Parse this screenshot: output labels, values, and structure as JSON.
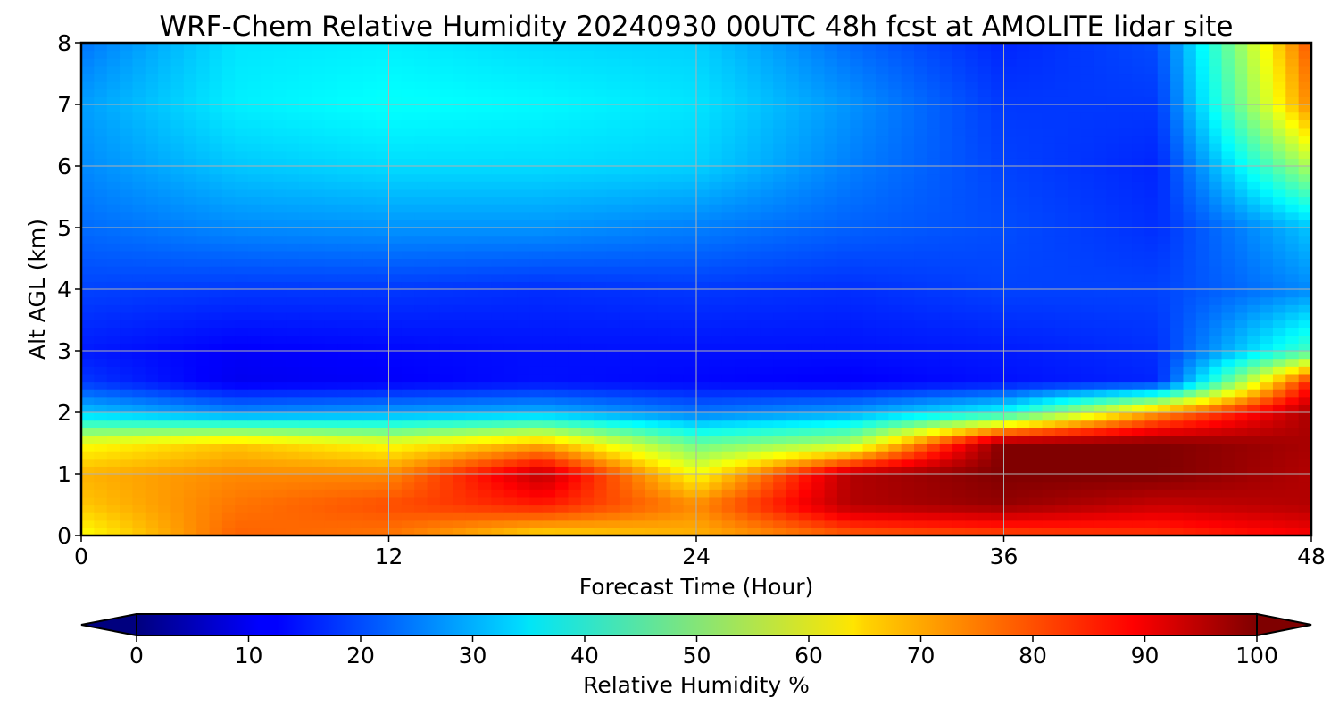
{
  "chart_data": {
    "type": "heatmap",
    "title": "WRF-Chem Relative Humidity 20240930 00UTC 48h fcst at AMOLITE lidar site",
    "xlabel": "Forecast Time (Hour)",
    "ylabel": "Alt AGL (km)",
    "xlim": [
      0,
      48
    ],
    "ylim": [
      0,
      8
    ],
    "xticks": [
      "0",
      "12",
      "24",
      "36",
      "48"
    ],
    "yticks": [
      "0",
      "1",
      "2",
      "3",
      "4",
      "5",
      "6",
      "7",
      "8"
    ],
    "grid": true,
    "colorbar": {
      "label": "Relative Humidity %",
      "range": [
        0,
        100
      ],
      "ticks": [
        "0",
        "10",
        "20",
        "30",
        "40",
        "50",
        "60",
        "70",
        "80",
        "90",
        "100"
      ],
      "colormap": "jet",
      "extend": "both"
    },
    "x": [
      0,
      6,
      12,
      18,
      24,
      30,
      36,
      42,
      48
    ],
    "y": [
      0,
      0.5,
      1,
      1.5,
      2,
      2.5,
      3,
      4,
      5,
      6,
      7,
      8
    ],
    "z": [
      [
        62,
        78,
        76,
        66,
        70,
        78,
        80,
        82,
        88
      ],
      [
        68,
        76,
        80,
        85,
        74,
        95,
        98,
        93,
        95
      ],
      [
        70,
        74,
        74,
        94,
        62,
        95,
        100,
        100,
        95
      ],
      [
        62,
        68,
        62,
        70,
        48,
        55,
        100,
        100,
        96
      ],
      [
        32,
        26,
        28,
        30,
        24,
        28,
        38,
        72,
        96
      ],
      [
        18,
        11,
        12,
        14,
        13,
        12,
        14,
        16,
        85
      ],
      [
        15,
        12,
        13,
        14,
        14,
        14,
        15,
        17,
        45
      ],
      [
        19,
        18,
        18,
        17,
        18,
        17,
        19,
        19,
        26
      ],
      [
        23,
        26,
        27,
        27,
        25,
        22,
        20,
        17,
        32
      ],
      [
        26,
        32,
        34,
        34,
        33,
        25,
        19,
        16,
        55
      ],
      [
        28,
        36,
        38,
        37,
        35,
        27,
        18,
        18,
        75
      ],
      [
        24,
        35,
        36,
        34,
        33,
        23,
        16,
        20,
        80
      ]
    ]
  }
}
